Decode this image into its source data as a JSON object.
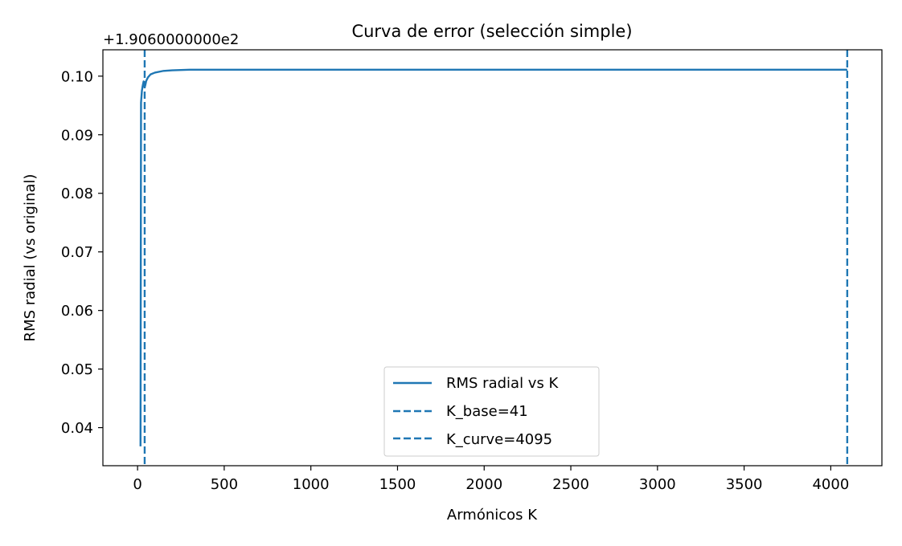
{
  "chart_data": {
    "type": "line",
    "title": "Curva de error (selección simple)",
    "xlabel": "Armónicos K",
    "ylabel": "RMS radial (vs original)",
    "offset_text": "+1.9060000000e2",
    "xlim": [
      -200,
      4295
    ],
    "ylim": [
      0.0335,
      0.1045
    ],
    "xticks": [
      0,
      500,
      1000,
      1500,
      2000,
      2500,
      3000,
      3500,
      4000
    ],
    "xtick_labels": [
      "0",
      "500",
      "1000",
      "1500",
      "2000",
      "2500",
      "3000",
      "3500",
      "4000"
    ],
    "yticks": [
      0.04,
      0.05,
      0.06,
      0.07,
      0.08,
      0.09,
      0.1
    ],
    "ytick_labels": [
      "0.04",
      "0.05",
      "0.06",
      "0.07",
      "0.08",
      "0.09",
      "0.10"
    ],
    "series": [
      {
        "name": "RMS radial vs K",
        "style": "solid",
        "color": "#1f77b4",
        "x": [
          17,
          20,
          25,
          30,
          35,
          38,
          41,
          45,
          50,
          60,
          75,
          100,
          150,
          200,
          300,
          500,
          1000,
          2000,
          3000,
          4095
        ],
        "y": [
          0.0368,
          0.0955,
          0.0975,
          0.0984,
          0.0991,
          0.0987,
          0.0981,
          0.0985,
          0.0992,
          0.0998,
          0.1003,
          0.1006,
          0.1009,
          0.101,
          0.1011,
          0.1011,
          0.1011,
          0.1011,
          0.1011,
          0.1011
        ]
      }
    ],
    "vlines": [
      {
        "name": "K_base=41",
        "x": 41,
        "style": "dashed",
        "color": "#1f77b4"
      },
      {
        "name": "K_curve=4095",
        "x": 4095,
        "style": "dashed",
        "color": "#1f77b4"
      }
    ],
    "legend": {
      "placement": "lower center",
      "entries": [
        "RMS radial vs K",
        "K_base=41",
        "K_curve=4095"
      ]
    },
    "grid": false
  }
}
